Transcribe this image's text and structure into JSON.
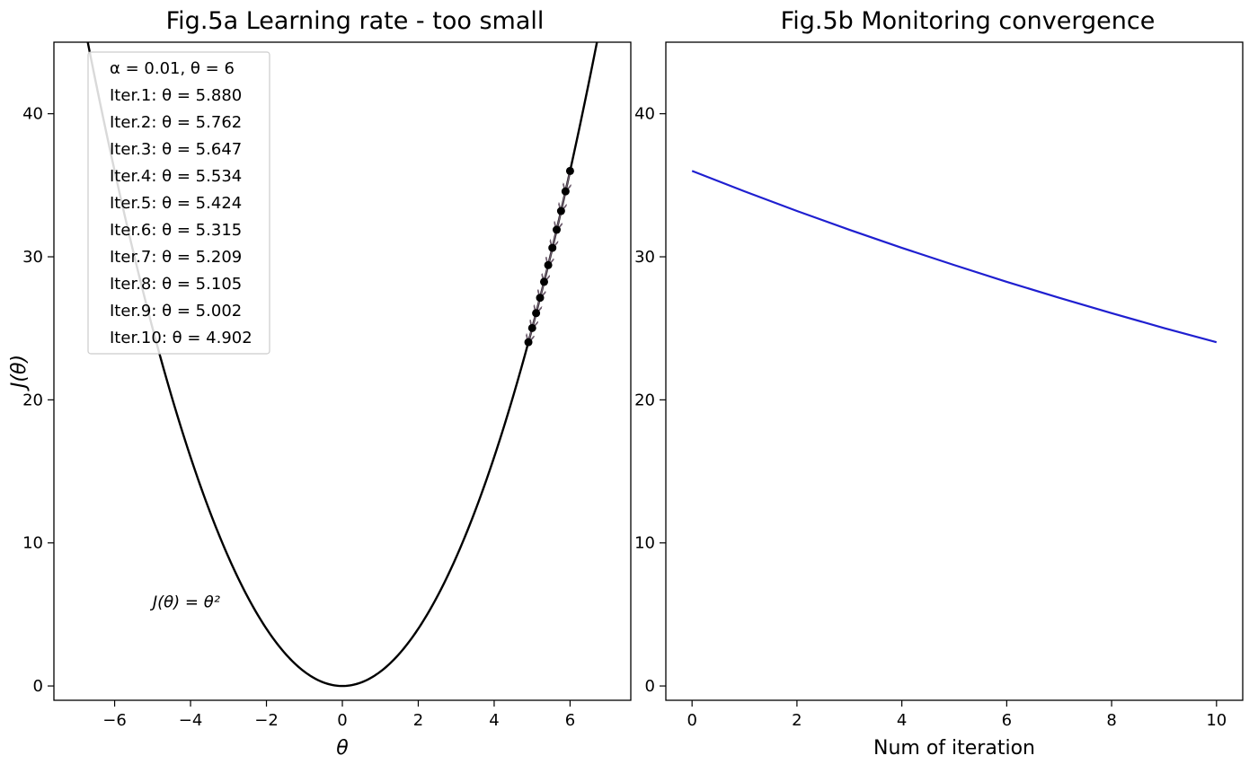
{
  "chart_data": [
    {
      "type": "line",
      "title": "Fig.5a Learning rate - too small",
      "xlabel": "θ",
      "ylabel": "J(θ)",
      "xlim": [
        -7.6,
        7.6
      ],
      "ylim": [
        -1,
        45
      ],
      "xticks": [
        -6,
        -4,
        -2,
        0,
        2,
        4,
        6
      ],
      "yticks": [
        0,
        10,
        20,
        30,
        40
      ],
      "xtick_labels": [
        "−6",
        "−4",
        "−2",
        "0",
        "2",
        "4",
        "6"
      ],
      "ytick_labels": [
        "0",
        "10",
        "20",
        "30",
        "40"
      ],
      "curve": {
        "label": "J(θ) = θ²",
        "x_min": -7.6,
        "x_max": 7.6,
        "color": "#000000"
      },
      "points": {
        "x": [
          6.0,
          5.88,
          5.762,
          5.647,
          5.534,
          5.424,
          5.315,
          5.209,
          5.105,
          5.002,
          4.902
        ],
        "y": [
          36.0,
          34.574,
          33.201,
          31.889,
          30.625,
          29.42,
          28.249,
          27.134,
          26.061,
          25.02,
          24.03
        ],
        "color": "#000000",
        "arrow_color": "#6b5a6b"
      },
      "legend": {
        "placement": "top-left",
        "entries": [
          "α = 0.01, θ = 6",
          "Iter.1: θ = 5.880",
          "Iter.2: θ = 5.762",
          "Iter.3: θ = 5.647",
          "Iter.4: θ = 5.534",
          "Iter.5: θ = 5.424",
          "Iter.6: θ = 5.315",
          "Iter.7: θ = 5.209",
          "Iter.8: θ = 5.105",
          "Iter.9: θ = 5.002",
          "Iter.10: θ = 4.902"
        ]
      },
      "annotation": {
        "text": "J(θ) = θ²",
        "x": -5.0,
        "y": 5.5
      },
      "grid": false
    },
    {
      "type": "line",
      "title": "Fig.5b Monitoring convergence",
      "xlabel": "Num of iteration",
      "ylabel": "",
      "xlim": [
        -0.5,
        10.5
      ],
      "ylim": [
        -1,
        45
      ],
      "xticks": [
        0,
        2,
        4,
        6,
        8,
        10
      ],
      "yticks": [
        0,
        10,
        20,
        30,
        40
      ],
      "xtick_labels": [
        "0",
        "2",
        "4",
        "6",
        "8",
        "10"
      ],
      "ytick_labels": [
        "0",
        "10",
        "20",
        "30",
        "40"
      ],
      "series": [
        {
          "x": [
            0,
            1,
            2,
            3,
            4,
            5,
            6,
            7,
            8,
            9,
            10
          ],
          "values": [
            36.0,
            34.574,
            33.201,
            31.889,
            30.625,
            29.42,
            28.249,
            27.134,
            26.061,
            25.02,
            24.03
          ],
          "color": "#1f1fd0"
        }
      ],
      "grid": false
    }
  ]
}
